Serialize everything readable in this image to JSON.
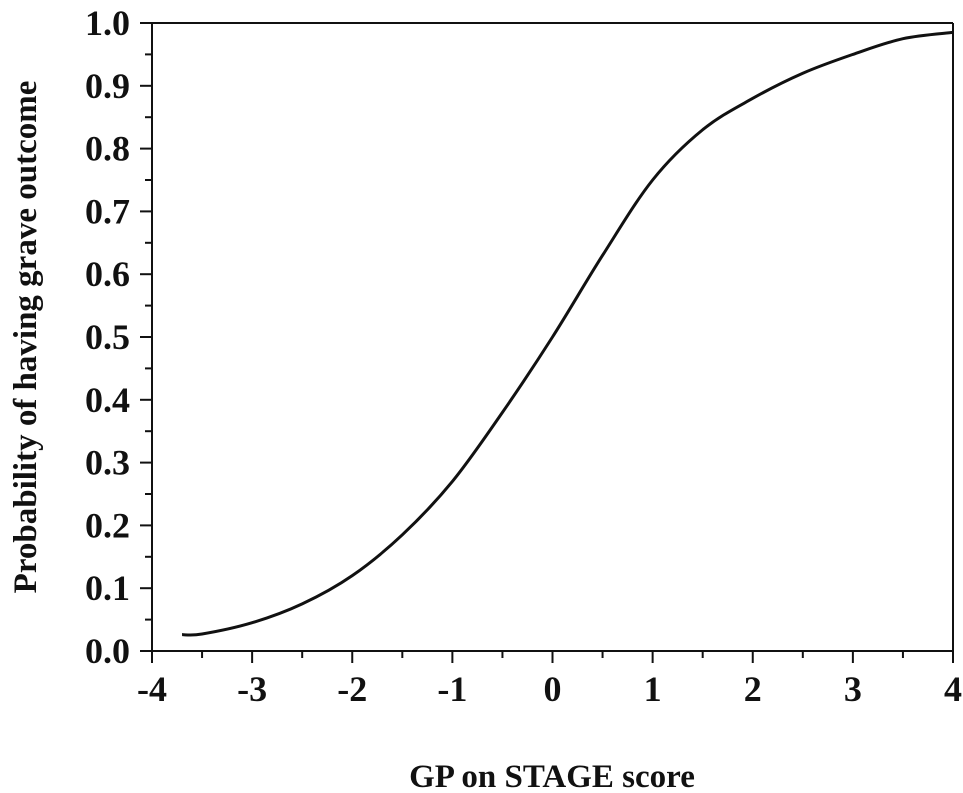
{
  "chart_data": {
    "type": "line",
    "title": "",
    "xlabel": "GP on STAGE score",
    "ylabel": "Probability of having grave outcome",
    "xlim": [
      -4,
      4
    ],
    "ylim": [
      0,
      1
    ],
    "x_ticks": [
      "-4",
      "-3",
      "-2",
      "-1",
      "0",
      "1",
      "2",
      "3",
      "4"
    ],
    "y_ticks": [
      "0.0",
      "0.1",
      "0.2",
      "0.3",
      "0.4",
      "0.5",
      "0.6",
      "0.7",
      "0.8",
      "0.9",
      "1.0"
    ],
    "grid": false,
    "legend": "none",
    "series": [
      {
        "x": [
          -3.7,
          -3.5,
          -3.0,
          -2.5,
          -2.0,
          -1.5,
          -1.0,
          -0.5,
          0.0,
          0.5,
          1.0,
          1.5,
          2.0,
          2.5,
          3.0,
          3.5,
          4.0
        ],
        "y": [
          0.026,
          0.027,
          0.045,
          0.075,
          0.12,
          0.185,
          0.27,
          0.38,
          0.5,
          0.63,
          0.75,
          0.83,
          0.88,
          0.92,
          0.95,
          0.975,
          0.985
        ]
      }
    ]
  }
}
